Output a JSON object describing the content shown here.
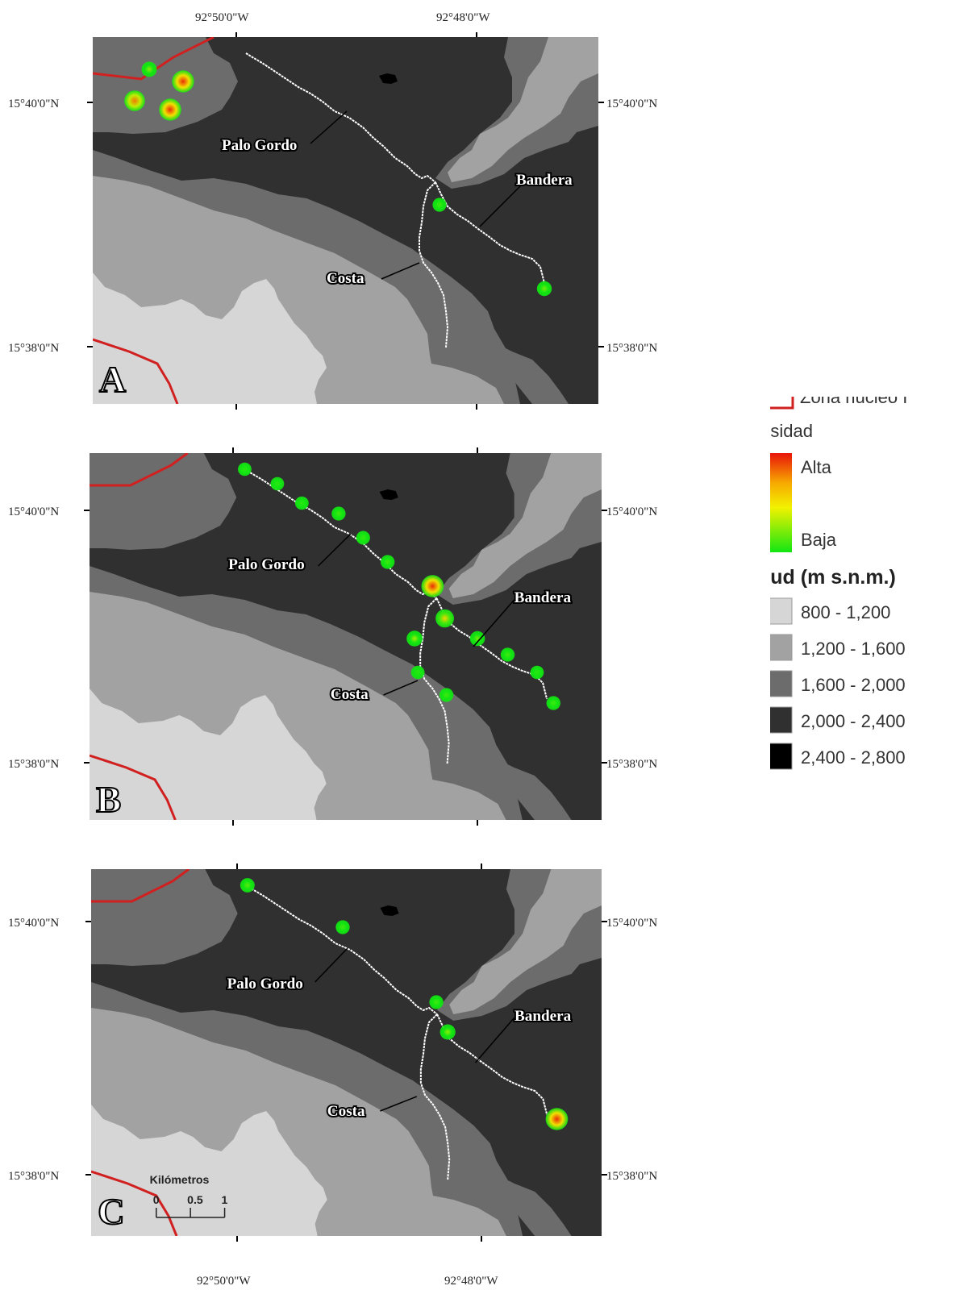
{
  "colors": {
    "alt_800_1200": "#d6d6d6",
    "alt_1200_1600": "#a2a2a2",
    "alt_1600_2000": "#6c6c6c",
    "alt_2000_2400": "#303030",
    "alt_2400_2800": "#000000",
    "zona_nucleo": "#d12020",
    "route": "#ffffff"
  },
  "axes": {
    "top_lon_left": "92°50'0\"W",
    "top_lon_right": "92°48'0\"W",
    "lat_upper": "15°40'0\"N",
    "lat_lower": "15°38'0\"N",
    "bottom_lon_left": "92°50'0\"W",
    "bottom_lon_right": "92°48'0\"W"
  },
  "labels": {
    "palo_gordo": "Palo Gordo",
    "bandera": "Bandera",
    "costa": "Costa"
  },
  "panels": [
    {
      "letter": "A",
      "hotspots": [
        {
          "id": "a1",
          "density": 0.25
        },
        {
          "id": "a2",
          "density": 0.95
        },
        {
          "id": "a3",
          "density": 0.8
        },
        {
          "id": "a4",
          "density": 0.95
        },
        {
          "id": "a5",
          "density": 0.1
        },
        {
          "id": "a6",
          "density": 0.2
        }
      ]
    },
    {
      "letter": "B",
      "hotspots": [
        {
          "id": "b1",
          "density": 0.05
        },
        {
          "id": "b2",
          "density": 0.05
        },
        {
          "id": "b3",
          "density": 0.05
        },
        {
          "id": "b4",
          "density": 0.1
        },
        {
          "id": "b5",
          "density": 0.08
        },
        {
          "id": "b6",
          "density": 0.1
        },
        {
          "id": "b7",
          "density": 0.95
        },
        {
          "id": "b8",
          "density": 0.55
        },
        {
          "id": "b9",
          "density": 0.3
        },
        {
          "id": "b10",
          "density": 0.2
        },
        {
          "id": "b11",
          "density": 0.1
        },
        {
          "id": "b12",
          "density": 0.05
        },
        {
          "id": "b13",
          "density": 0.1
        },
        {
          "id": "b14",
          "density": 0.05
        },
        {
          "id": "b15",
          "density": 0.1
        }
      ]
    },
    {
      "letter": "C",
      "hotspots": [
        {
          "id": "c1",
          "density": 0.15
        },
        {
          "id": "c2",
          "density": 0.1
        },
        {
          "id": "c3",
          "density": 0.1
        },
        {
          "id": "c4",
          "density": 0.25
        },
        {
          "id": "c5",
          "density": 0.95
        }
      ]
    }
  ],
  "scale_bar": {
    "title": "Kilómetros",
    "ticks": [
      "0",
      "0.5",
      "1"
    ]
  },
  "legend": {
    "zona_label": "Zona núcleo I",
    "density_title": "Densidad",
    "density_high": "Alta",
    "density_low": "Baja",
    "altitude_title": "Alitud (m s.n.m.)",
    "classes": [
      {
        "label": "800 - 1,200",
        "color": "#d6d6d6"
      },
      {
        "label": "1,200 - 1,600",
        "color": "#a2a2a2"
      },
      {
        "label": "1,600 - 2,000",
        "color": "#6c6c6c"
      },
      {
        "label": "2,000 - 2,400",
        "color": "#303030"
      },
      {
        "label": "2,400 - 2,800",
        "color": "#000000"
      }
    ]
  }
}
